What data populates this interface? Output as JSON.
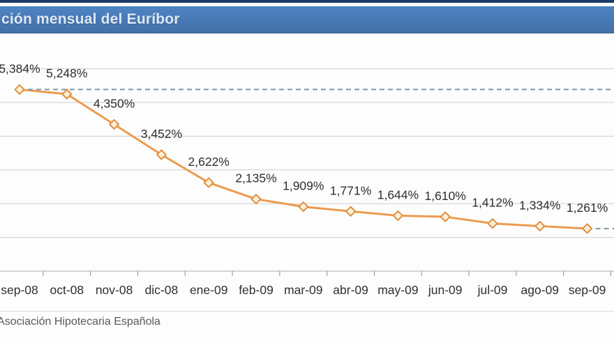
{
  "header": {
    "title": "ción mensual del Euríbor"
  },
  "footer": {
    "source": "Asociación Hipotecaria Española"
  },
  "colors": {
    "top_strip": "#1c3a66",
    "title_bar": "#4a7dbb",
    "title_text": "#dde8f4",
    "series_line": "#ec9b4e",
    "marker_fill": "#faf0da",
    "marker_stroke": "#e08f3d",
    "reference_dash": "#7c99a8",
    "gridline": "#cdcdcd",
    "axis_line": "#ababab",
    "label_text": "#2f2f2f",
    "footer_text": "#595959"
  },
  "chart_data": {
    "type": "line",
    "title": "ción mensual del Euríbor",
    "source": "Asociación Hipotecaria Española",
    "series_name": "Euríbor",
    "categories": [
      "sep-08",
      "oct-08",
      "nov-08",
      "dic-08",
      "ene-09",
      "feb-09",
      "mar-09",
      "abr-09",
      "may-09",
      "jun-09",
      "jul-09",
      "ago-09",
      "sep-09"
    ],
    "values": [
      5.384,
      5.248,
      4.35,
      3.452,
      2.622,
      2.135,
      1.909,
      1.771,
      1.644,
      1.61,
      1.412,
      1.334,
      1.261
    ],
    "point_labels": [
      "5,384%",
      "5,248%",
      "4,350%",
      "3,452%",
      "2,622%",
      "2,135%",
      "1,909%",
      "1,771%",
      "1,644%",
      "1,610%",
      "1,412%",
      "1,334%",
      "1,261%"
    ],
    "xlabel": "",
    "ylabel": "",
    "ylim": [
      0,
      6
    ],
    "grid": "horizontal gridlines every 1%, y-axis labels cropped out of frame",
    "legend_position": "none",
    "marker": "open-diamond",
    "reference_lines": [
      {
        "value": 5.384,
        "style": "dashed",
        "from_category_index": 0,
        "to": "right-edge"
      },
      {
        "value": 1.261,
        "style": "dashed",
        "from_category_index": 12,
        "to": "right-edge"
      }
    ]
  }
}
